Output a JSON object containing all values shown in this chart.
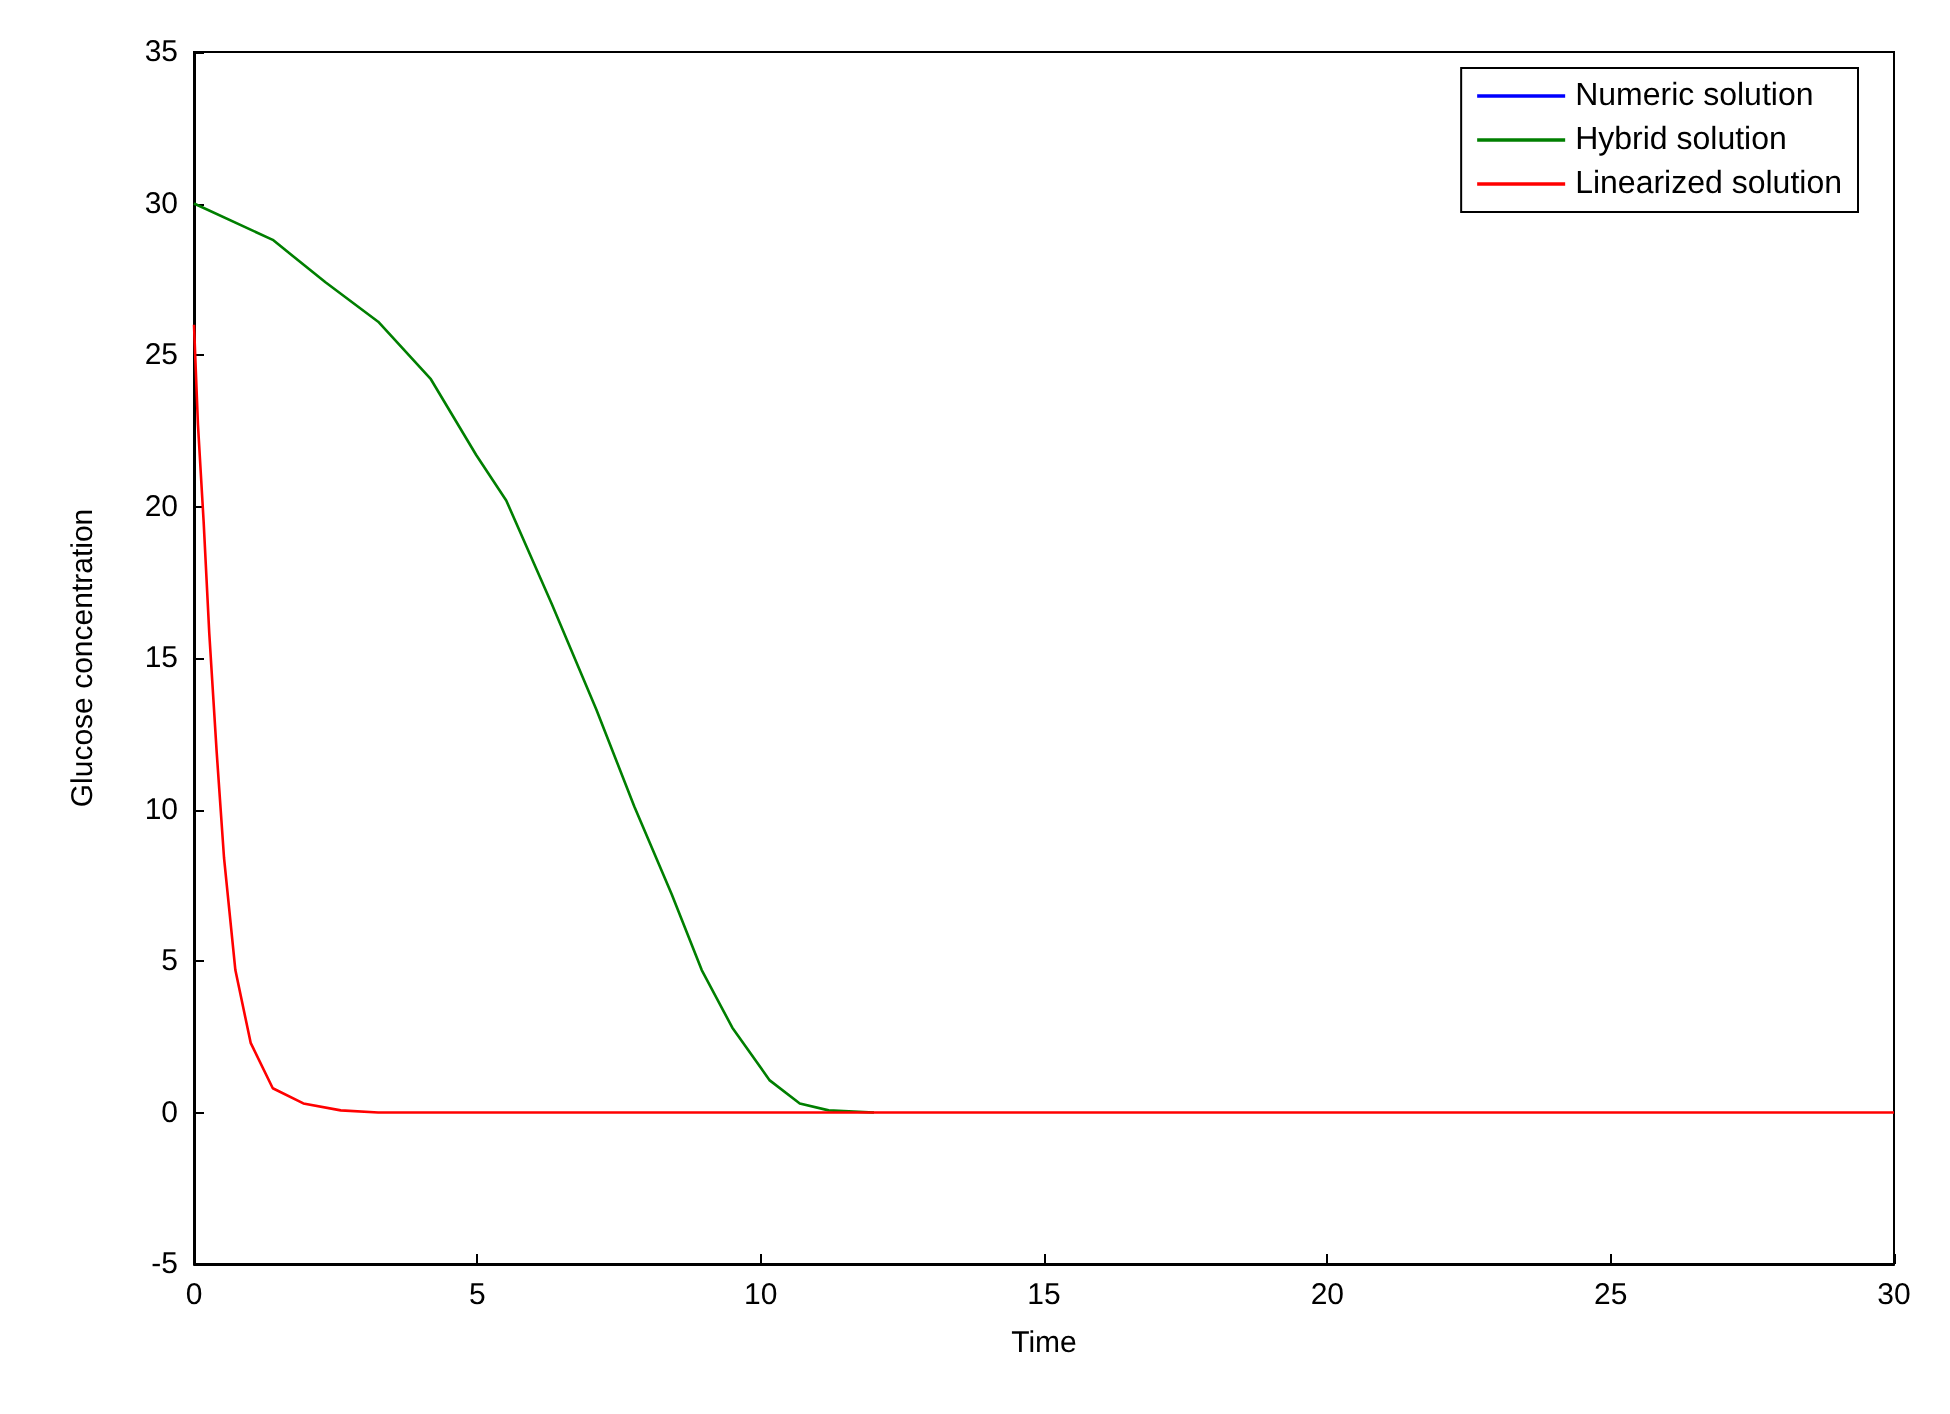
{
  "chart_data": {
    "type": "line",
    "xlabel": "Time",
    "ylabel": "Glucose concentration",
    "xlim": [
      0,
      30
    ],
    "xticks": [
      0,
      5,
      10,
      15,
      20,
      25,
      30
    ],
    "ylim": [
      -5,
      35
    ],
    "yticks": [
      -5,
      0,
      5,
      10,
      15,
      20,
      25,
      30,
      35
    ],
    "grid": false,
    "legend": "top right",
    "marker": "none",
    "line_style": "solid",
    "series": [
      {
        "name": "Numeric solution",
        "color": "#0000ff"
      },
      {
        "name": "Hybrid solution",
        "color": "#007f00",
        "x": [
          0,
          1.39,
          2.32,
          3.25,
          4.18,
          4.98,
          5.51,
          6.31,
          7.1,
          7.77,
          8.43,
          8.96,
          9.5,
          10.16,
          10.69,
          11.2,
          12
        ],
        "values": [
          30,
          28.8,
          27.4,
          26.1,
          24.2,
          21.7,
          20.2,
          16.8,
          13.3,
          10.1,
          7.2,
          4.7,
          2.8,
          1.06,
          0.3,
          0.07,
          0
        ]
      },
      {
        "name": "Linearized solution",
        "color": "#ff0000",
        "x": [
          0,
          0.07,
          0.17,
          0.27,
          0.4,
          0.53,
          0.73,
          1.0,
          1.39,
          1.93,
          2.59,
          3.25,
          30
        ],
        "values": [
          26,
          22.7,
          19.5,
          15.8,
          11.9,
          8.4,
          4.7,
          2.3,
          0.8,
          0.3,
          0.07,
          0,
          0
        ]
      }
    ]
  }
}
